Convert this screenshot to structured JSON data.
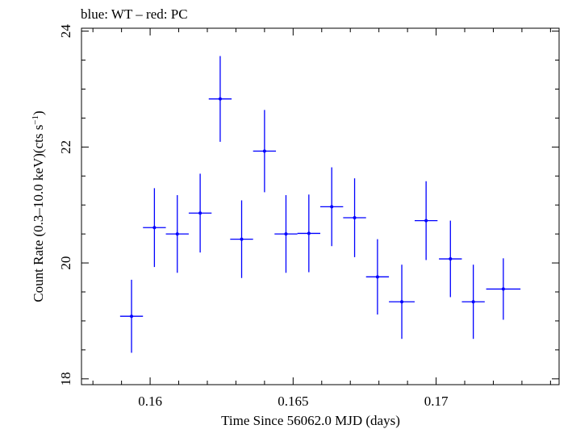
{
  "chart_data": {
    "type": "scatter",
    "title": "blue: WT – red: PC",
    "xlabel": "Time Since 56062.0 MJD (days)",
    "ylabel_main": "Count Rate (0.3–10.0 keV)(cts s",
    "ylabel_sup": "−1",
    "ylabel_tail": ")",
    "xlim": [
      0.1576,
      0.1743
    ],
    "ylim": [
      17.9,
      24.05
    ],
    "xticks_major": [
      0.16,
      0.165,
      0.17
    ],
    "xtick_labels": [
      "0.16",
      "0.165",
      "0.17"
    ],
    "yticks_major": [
      18,
      20,
      22,
      24
    ],
    "ytick_labels": [
      "18",
      "20",
      "22",
      "24"
    ],
    "grid": false,
    "series": [
      {
        "color": "#0000ff",
        "points": [
          {
            "x": 0.15935,
            "y": 19.08,
            "xerr": 0.0004,
            "yerr": 0.63
          },
          {
            "x": 0.16015,
            "y": 20.61,
            "xerr": 0.0004,
            "yerr": 0.68
          },
          {
            "x": 0.16095,
            "y": 20.5,
            "xerr": 0.0004,
            "yerr": 0.67
          },
          {
            "x": 0.16175,
            "y": 20.86,
            "xerr": 0.0004,
            "yerr": 0.68
          },
          {
            "x": 0.16245,
            "y": 22.83,
            "xerr": 0.0004,
            "yerr": 0.74
          },
          {
            "x": 0.1632,
            "y": 20.41,
            "xerr": 0.0004,
            "yerr": 0.67
          },
          {
            "x": 0.164,
            "y": 21.93,
            "xerr": 0.0004,
            "yerr": 0.71
          },
          {
            "x": 0.16475,
            "y": 20.5,
            "xerr": 0.0004,
            "yerr": 0.67
          },
          {
            "x": 0.16555,
            "y": 20.51,
            "xerr": 0.0004,
            "yerr": 0.67
          },
          {
            "x": 0.16635,
            "y": 20.97,
            "xerr": 0.0004,
            "yerr": 0.68
          },
          {
            "x": 0.16715,
            "y": 20.78,
            "xerr": 0.0004,
            "yerr": 0.68
          },
          {
            "x": 0.16795,
            "y": 19.76,
            "xerr": 0.0004,
            "yerr": 0.65
          },
          {
            "x": 0.1688,
            "y": 19.33,
            "xerr": 0.00045,
            "yerr": 0.64
          },
          {
            "x": 0.16965,
            "y": 20.73,
            "xerr": 0.0004,
            "yerr": 0.68
          },
          {
            "x": 0.1705,
            "y": 20.07,
            "xerr": 0.0004,
            "yerr": 0.66
          },
          {
            "x": 0.1713,
            "y": 19.33,
            "xerr": 0.0004,
            "yerr": 0.64
          },
          {
            "x": 0.17235,
            "y": 19.55,
            "xerr": 0.0006,
            "yerr": 0.53
          }
        ]
      }
    ]
  }
}
